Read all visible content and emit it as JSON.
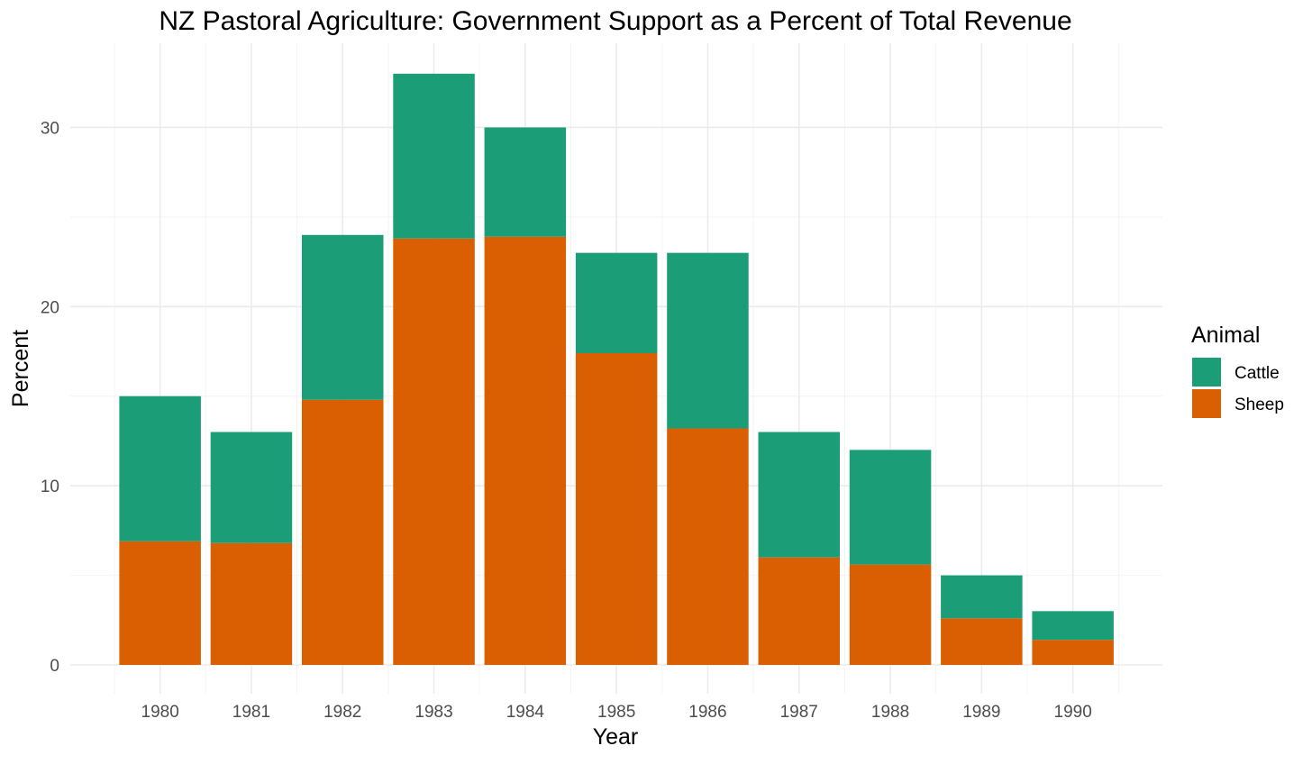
{
  "chart_data": {
    "type": "bar",
    "stacked": true,
    "title": "NZ Pastoral Agriculture: Government Support as a Percent of Total Revenue",
    "xlabel": "Year",
    "ylabel": "Percent",
    "categories": [
      "1980",
      "1981",
      "1982",
      "1983",
      "1984",
      "1985",
      "1986",
      "1987",
      "1988",
      "1989",
      "1990"
    ],
    "series": [
      {
        "name": "Sheep",
        "color": "#D95F02",
        "values": [
          6.9,
          6.8,
          14.8,
          23.8,
          23.9,
          17.4,
          13.2,
          6.0,
          5.6,
          2.6,
          1.4
        ]
      },
      {
        "name": "Cattle",
        "color": "#1B9E77",
        "values": [
          8.1,
          6.2,
          9.2,
          9.2,
          6.1,
          5.6,
          9.8,
          7.0,
          6.4,
          2.4,
          1.6
        ]
      }
    ],
    "yticks": [
      0,
      10,
      20,
      30
    ],
    "ylim": [
      0,
      34.7
    ],
    "grid": true,
    "legend": {
      "title": "Animal",
      "position": "right",
      "entries": [
        "Cattle",
        "Sheep"
      ]
    }
  }
}
